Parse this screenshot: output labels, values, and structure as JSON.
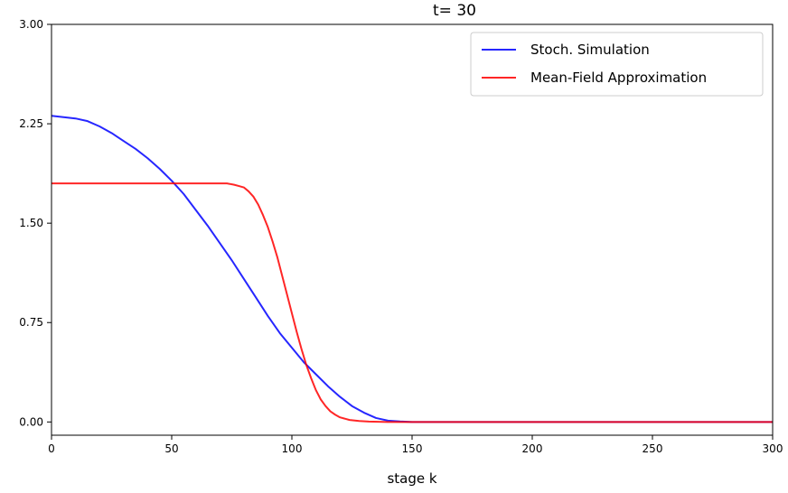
{
  "chart_data": {
    "type": "line",
    "title": "t= 30",
    "xlabel": "stage k",
    "ylabel": "",
    "xlim": [
      0,
      300
    ],
    "ylim": [
      -0.1,
      3.0
    ],
    "xticks": [
      0,
      50,
      100,
      150,
      200,
      250,
      300
    ],
    "yticks": [
      0.0,
      0.75,
      1.5,
      2.25,
      3.0
    ],
    "xtick_labels": [
      "0",
      "50",
      "100",
      "150",
      "200",
      "250",
      "300"
    ],
    "ytick_labels": [
      "0.00",
      "0.75",
      "1.50",
      "2.25",
      "3.00"
    ],
    "grid": false,
    "legend_position": "top-right",
    "series": [
      {
        "name": "Stoch. Simulation",
        "color": "#0000ff",
        "x": [
          0,
          5,
          10,
          15,
          20,
          25,
          30,
          35,
          40,
          45,
          50,
          55,
          60,
          65,
          70,
          75,
          80,
          85,
          90,
          95,
          100,
          105,
          110,
          115,
          120,
          125,
          130,
          135,
          140,
          145,
          150,
          160,
          170,
          180,
          200,
          250,
          300
        ],
        "y": [
          2.31,
          2.3,
          2.29,
          2.27,
          2.23,
          2.18,
          2.12,
          2.06,
          1.99,
          1.91,
          1.82,
          1.72,
          1.6,
          1.48,
          1.35,
          1.22,
          1.08,
          0.94,
          0.8,
          0.67,
          0.56,
          0.45,
          0.36,
          0.27,
          0.19,
          0.12,
          0.07,
          0.03,
          0.01,
          0.004,
          0.0,
          0.0,
          0.0,
          0.0,
          0.0,
          0.0,
          0.0
        ]
      },
      {
        "name": "Mean-Field Approximation",
        "color": "#ff0000",
        "x": [
          0,
          10,
          20,
          30,
          40,
          50,
          60,
          65,
          70,
          73,
          76,
          78,
          80,
          82,
          84,
          86,
          88,
          90,
          92,
          94,
          96,
          98,
          100,
          102,
          104,
          106,
          108,
          110,
          112,
          114,
          116,
          118,
          120,
          124,
          128,
          132,
          136,
          140,
          150,
          200,
          250,
          300
        ],
        "y": [
          1.8,
          1.8,
          1.8,
          1.8,
          1.8,
          1.8,
          1.8,
          1.8,
          1.8,
          1.8,
          1.79,
          1.78,
          1.77,
          1.74,
          1.7,
          1.64,
          1.56,
          1.47,
          1.36,
          1.24,
          1.1,
          0.96,
          0.82,
          0.68,
          0.55,
          0.43,
          0.33,
          0.24,
          0.17,
          0.12,
          0.08,
          0.055,
          0.035,
          0.015,
          0.007,
          0.003,
          0.001,
          0.0,
          0.0,
          0.0,
          0.0,
          0.0
        ]
      }
    ]
  }
}
